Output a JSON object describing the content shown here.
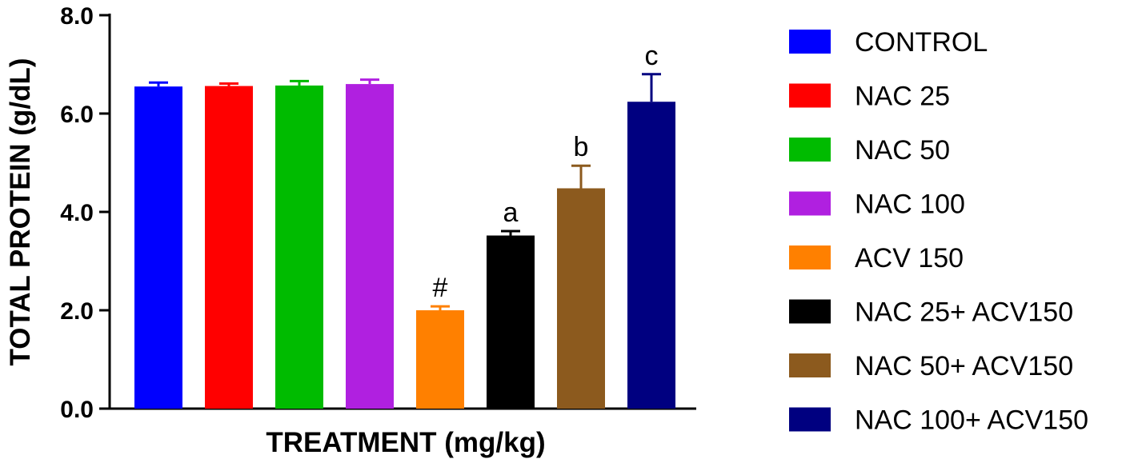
{
  "chart_data": {
    "type": "bar",
    "xlabel": "TREATMENT (mg/kg)",
    "ylabel": "TOTAL PROTEIN (g/dL)",
    "ylim": [
      0,
      8
    ],
    "yticks": [
      "0.0",
      "2.0",
      "4.0",
      "6.0",
      "8.0"
    ],
    "grid": false,
    "legend_position": "right",
    "categories": [
      "CONTROL",
      "NAC 25",
      "NAC 50",
      "NAC 100",
      "ACV 150",
      "NAC 25+ ACV150",
      "NAC 50+ ACV150",
      "NAC 100+ ACV150"
    ],
    "values": [
      6.55,
      6.56,
      6.57,
      6.6,
      2.0,
      3.52,
      4.48,
      6.24
    ],
    "errors": [
      0.08,
      0.05,
      0.09,
      0.09,
      0.08,
      0.09,
      0.46,
      0.56
    ],
    "annotations": [
      "",
      "",
      "",
      "",
      "#",
      "a",
      "b",
      "c"
    ],
    "colors": [
      "#0000FF",
      "#FF0000",
      "#00BB00",
      "#B020E0",
      "#FF8000",
      "#000000",
      "#8C5A1E",
      "#000080"
    ]
  }
}
